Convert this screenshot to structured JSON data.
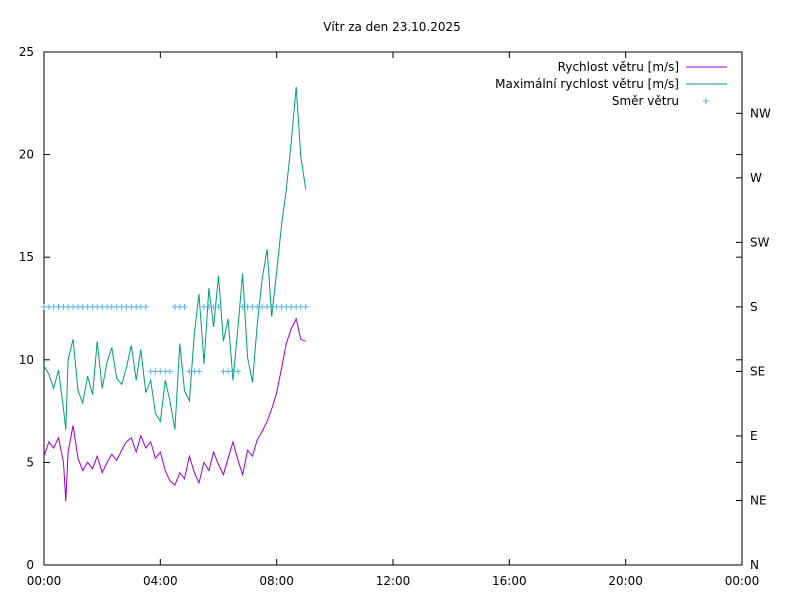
{
  "chart_data": {
    "type": "line",
    "title": "Vítr za den 23.10.2025",
    "xlabel": "",
    "ylabel": "",
    "x_ticks": [
      "00:00",
      "04:00",
      "08:00",
      "12:00",
      "16:00",
      "20:00",
      "00:00"
    ],
    "xlim_hours": [
      0,
      24
    ],
    "ylim": [
      0,
      25
    ],
    "y_ticks": [
      "0",
      "5",
      "10",
      "15",
      "20",
      "25"
    ],
    "y2_ticks": [
      "N",
      "NE",
      "E",
      "SE",
      "S",
      "SW",
      "W",
      "NW"
    ],
    "y2_unit_deg": 45,
    "grid": false,
    "legend": "top-right",
    "colors": {
      "speed": "#9400d3",
      "gust": "#009e73",
      "direction": "#56b4e9",
      "axis": "#000000"
    },
    "series": [
      {
        "name": "Rychlost větru [m/s]",
        "style": "line",
        "points": [
          [
            0.0,
            5.3
          ],
          [
            0.17,
            6.0
          ],
          [
            0.33,
            5.7
          ],
          [
            0.5,
            6.2
          ],
          [
            0.67,
            5.0
          ],
          [
            0.75,
            3.1
          ],
          [
            0.83,
            5.5
          ],
          [
            1.0,
            6.8
          ],
          [
            1.17,
            5.2
          ],
          [
            1.33,
            4.6
          ],
          [
            1.5,
            5.0
          ],
          [
            1.67,
            4.7
          ],
          [
            1.83,
            5.3
          ],
          [
            2.0,
            4.5
          ],
          [
            2.17,
            5.0
          ],
          [
            2.33,
            5.4
          ],
          [
            2.5,
            5.1
          ],
          [
            2.67,
            5.6
          ],
          [
            2.83,
            6.0
          ],
          [
            3.0,
            6.2
          ],
          [
            3.17,
            5.5
          ],
          [
            3.33,
            6.3
          ],
          [
            3.5,
            5.7
          ],
          [
            3.67,
            6.0
          ],
          [
            3.83,
            5.2
          ],
          [
            4.0,
            5.5
          ],
          [
            4.17,
            4.6
          ],
          [
            4.33,
            4.1
          ],
          [
            4.5,
            3.9
          ],
          [
            4.67,
            4.5
          ],
          [
            4.83,
            4.2
          ],
          [
            5.0,
            5.3
          ],
          [
            5.17,
            4.5
          ],
          [
            5.33,
            4.0
          ],
          [
            5.5,
            5.0
          ],
          [
            5.67,
            4.6
          ],
          [
            5.83,
            5.5
          ],
          [
            6.0,
            4.9
          ],
          [
            6.17,
            4.4
          ],
          [
            6.33,
            5.2
          ],
          [
            6.5,
            6.0
          ],
          [
            6.67,
            5.1
          ],
          [
            6.83,
            4.4
          ],
          [
            7.0,
            5.6
          ],
          [
            7.17,
            5.3
          ],
          [
            7.33,
            6.1
          ],
          [
            7.5,
            6.5
          ],
          [
            7.67,
            7.0
          ],
          [
            7.83,
            7.6
          ],
          [
            8.0,
            8.4
          ],
          [
            8.17,
            9.6
          ],
          [
            8.33,
            10.8
          ],
          [
            8.5,
            11.5
          ],
          [
            8.67,
            12.0
          ],
          [
            8.83,
            11.0
          ],
          [
            9.0,
            10.9
          ]
        ]
      },
      {
        "name": "Maximální rychlost větru [m/s]",
        "style": "line",
        "points": [
          [
            0.0,
            9.7
          ],
          [
            0.17,
            9.3
          ],
          [
            0.33,
            8.6
          ],
          [
            0.5,
            9.5
          ],
          [
            0.67,
            7.6
          ],
          [
            0.75,
            6.6
          ],
          [
            0.83,
            10.0
          ],
          [
            1.0,
            11.0
          ],
          [
            1.17,
            8.5
          ],
          [
            1.33,
            7.9
          ],
          [
            1.5,
            9.2
          ],
          [
            1.67,
            8.3
          ],
          [
            1.83,
            10.9
          ],
          [
            2.0,
            8.6
          ],
          [
            2.17,
            9.9
          ],
          [
            2.33,
            10.6
          ],
          [
            2.5,
            9.1
          ],
          [
            2.67,
            8.8
          ],
          [
            2.83,
            9.6
          ],
          [
            3.0,
            10.7
          ],
          [
            3.17,
            9.0
          ],
          [
            3.33,
            10.5
          ],
          [
            3.5,
            8.4
          ],
          [
            3.67,
            9.0
          ],
          [
            3.83,
            7.4
          ],
          [
            4.0,
            7.0
          ],
          [
            4.17,
            9.0
          ],
          [
            4.33,
            8.0
          ],
          [
            4.5,
            6.6
          ],
          [
            4.67,
            10.8
          ],
          [
            4.83,
            8.5
          ],
          [
            5.0,
            8.0
          ],
          [
            5.17,
            11.3
          ],
          [
            5.33,
            13.2
          ],
          [
            5.5,
            9.8
          ],
          [
            5.67,
            13.5
          ],
          [
            5.83,
            11.6
          ],
          [
            6.0,
            14.1
          ],
          [
            6.17,
            10.9
          ],
          [
            6.33,
            12.0
          ],
          [
            6.5,
            9.0
          ],
          [
            6.67,
            11.6
          ],
          [
            6.83,
            14.2
          ],
          [
            7.0,
            10.1
          ],
          [
            7.17,
            8.9
          ],
          [
            7.33,
            11.7
          ],
          [
            7.5,
            13.9
          ],
          [
            7.67,
            15.4
          ],
          [
            7.83,
            12.1
          ],
          [
            8.0,
            14.3
          ],
          [
            8.17,
            16.6
          ],
          [
            8.33,
            18.3
          ],
          [
            8.5,
            20.6
          ],
          [
            8.67,
            23.3
          ],
          [
            8.83,
            19.9
          ],
          [
            9.0,
            18.3
          ]
        ]
      },
      {
        "name": "Směr větru",
        "style": "points",
        "axis": "y2",
        "points_deg": [
          [
            0.0,
            180
          ],
          [
            0.17,
            180
          ],
          [
            0.33,
            180
          ],
          [
            0.5,
            180
          ],
          [
            0.67,
            180
          ],
          [
            0.83,
            180
          ],
          [
            1.0,
            180
          ],
          [
            1.17,
            180
          ],
          [
            1.33,
            180
          ],
          [
            1.5,
            180
          ],
          [
            1.67,
            180
          ],
          [
            1.83,
            180
          ],
          [
            2.0,
            180
          ],
          [
            2.17,
            180
          ],
          [
            2.33,
            180
          ],
          [
            2.5,
            180
          ],
          [
            2.67,
            180
          ],
          [
            2.83,
            180
          ],
          [
            3.0,
            180
          ],
          [
            3.17,
            180
          ],
          [
            3.33,
            180
          ],
          [
            3.5,
            180
          ],
          [
            3.67,
            135
          ],
          [
            3.83,
            135
          ],
          [
            4.0,
            135
          ],
          [
            4.17,
            135
          ],
          [
            4.33,
            135
          ],
          [
            4.5,
            180
          ],
          [
            4.67,
            180
          ],
          [
            4.83,
            180
          ],
          [
            5.0,
            135
          ],
          [
            5.17,
            135
          ],
          [
            5.33,
            135
          ],
          [
            5.5,
            180
          ],
          [
            5.67,
            180
          ],
          [
            5.83,
            180
          ],
          [
            6.0,
            180
          ],
          [
            6.17,
            135
          ],
          [
            6.33,
            135
          ],
          [
            6.5,
            135
          ],
          [
            6.67,
            135
          ],
          [
            6.83,
            180
          ],
          [
            7.0,
            180
          ],
          [
            7.17,
            180
          ],
          [
            7.33,
            180
          ],
          [
            7.5,
            180
          ],
          [
            7.67,
            180
          ],
          [
            7.83,
            180
          ],
          [
            8.0,
            180
          ],
          [
            8.17,
            180
          ],
          [
            8.33,
            180
          ],
          [
            8.5,
            180
          ],
          [
            8.67,
            180
          ],
          [
            8.83,
            180
          ],
          [
            9.0,
            180
          ]
        ]
      }
    ]
  }
}
